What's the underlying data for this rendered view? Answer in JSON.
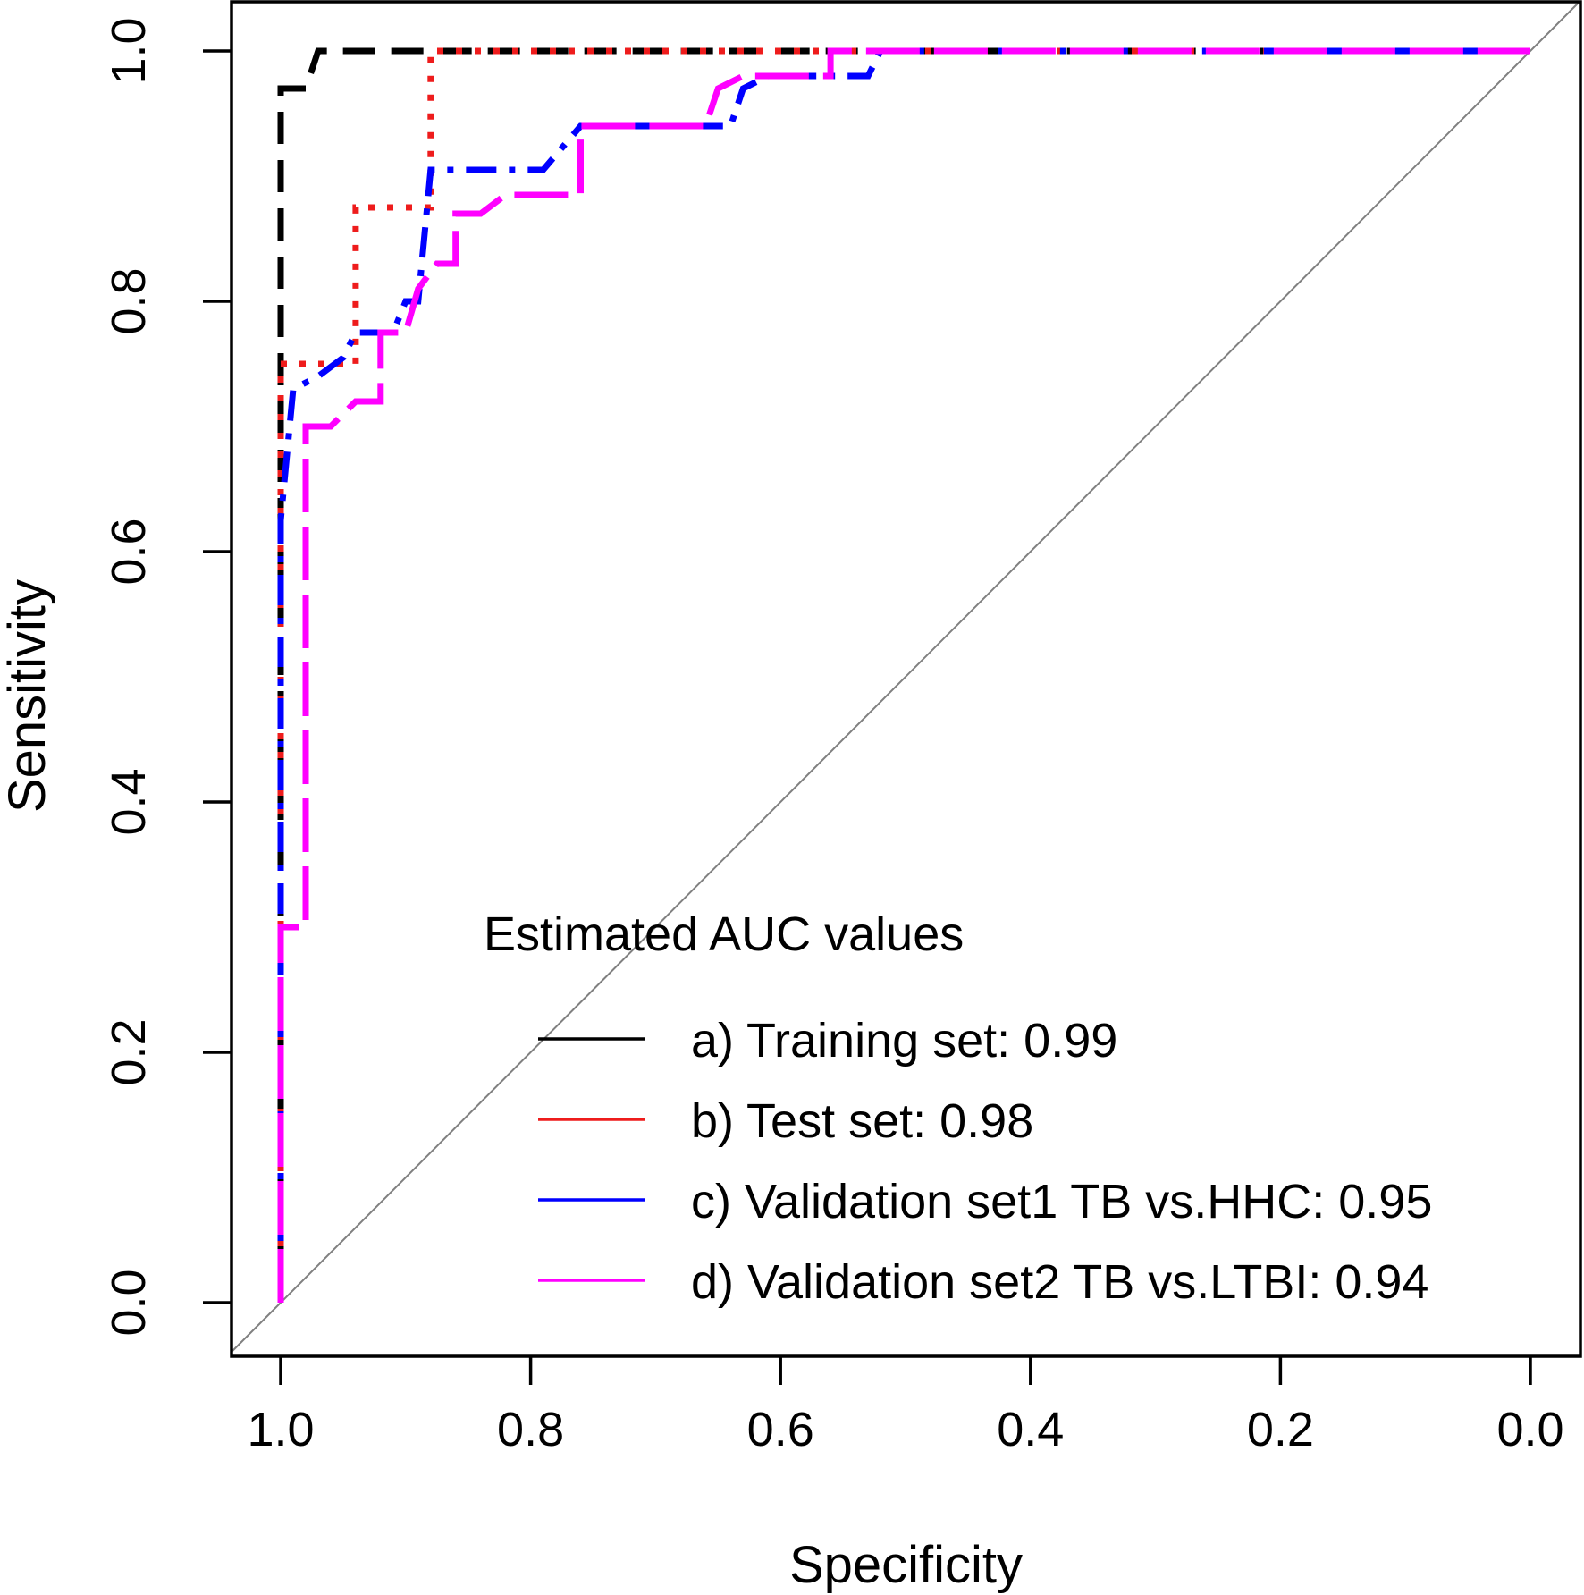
{
  "chart_data": {
    "type": "line",
    "title": "",
    "xlabel": "Specificity",
    "ylabel": "Sensitivity",
    "xlim": [
      1.0,
      0.0
    ],
    "ylim": [
      0.0,
      1.0
    ],
    "x_reversed": true,
    "x_ticks": [
      "1.0",
      "0.8",
      "0.6",
      "0.4",
      "0.2",
      "0.0"
    ],
    "y_ticks": [
      "0.0",
      "0.2",
      "0.4",
      "0.6",
      "0.8",
      "1.0"
    ],
    "grid": false,
    "reference_line": {
      "from": [
        1.0,
        0.0
      ],
      "to": [
        0.0,
        1.0
      ],
      "color": "#808080"
    },
    "legend": {
      "title": "Estimated AUC values",
      "position": "bottom-right"
    },
    "series": [
      {
        "name": "a) Training set: 0.99",
        "color": "#000000",
        "dash": "dashed",
        "points": [
          [
            1.0,
            0.0
          ],
          [
            1.0,
            0.97
          ],
          [
            0.98,
            0.97
          ],
          [
            0.97,
            1.0
          ],
          [
            0.0,
            1.0
          ]
        ]
      },
      {
        "name": "b) Test set: 0.98",
        "color": "#ee1c1c",
        "dash": "dotted",
        "points": [
          [
            1.0,
            0.0
          ],
          [
            1.0,
            0.75
          ],
          [
            0.96,
            0.75
          ],
          [
            0.94,
            0.75
          ],
          [
            0.94,
            0.875
          ],
          [
            0.88,
            0.875
          ],
          [
            0.88,
            1.0
          ],
          [
            0.0,
            1.0
          ]
        ]
      },
      {
        "name": "c) Validation set1 TB vs.HHC: 0.95",
        "color": "#0000ff",
        "dash": "dotdash",
        "points": [
          [
            1.0,
            0.0
          ],
          [
            1.0,
            0.625
          ],
          [
            0.99,
            0.73
          ],
          [
            0.97,
            0.74
          ],
          [
            0.95,
            0.755
          ],
          [
            0.94,
            0.775
          ],
          [
            0.91,
            0.775
          ],
          [
            0.9,
            0.8
          ],
          [
            0.89,
            0.8
          ],
          [
            0.88,
            0.905
          ],
          [
            0.79,
            0.905
          ],
          [
            0.76,
            0.94
          ],
          [
            0.66,
            0.94
          ],
          [
            0.64,
            0.94
          ],
          [
            0.63,
            0.97
          ],
          [
            0.61,
            0.98
          ],
          [
            0.53,
            0.98
          ],
          [
            0.52,
            1.0
          ],
          [
            0.0,
            1.0
          ]
        ]
      },
      {
        "name": "d) Validation set2 TB vs.LTBI: 0.94",
        "color": "#ff00ff",
        "dash": "longdash",
        "points": [
          [
            1.0,
            0.0
          ],
          [
            1.0,
            0.3
          ],
          [
            0.98,
            0.3
          ],
          [
            0.98,
            0.7
          ],
          [
            0.96,
            0.7
          ],
          [
            0.94,
            0.72
          ],
          [
            0.92,
            0.72
          ],
          [
            0.92,
            0.775
          ],
          [
            0.9,
            0.775
          ],
          [
            0.89,
            0.81
          ],
          [
            0.875,
            0.83
          ],
          [
            0.86,
            0.83
          ],
          [
            0.86,
            0.87
          ],
          [
            0.84,
            0.87
          ],
          [
            0.82,
            0.885
          ],
          [
            0.76,
            0.885
          ],
          [
            0.76,
            0.94
          ],
          [
            0.66,
            0.94
          ],
          [
            0.65,
            0.97
          ],
          [
            0.63,
            0.98
          ],
          [
            0.56,
            0.98
          ],
          [
            0.56,
            1.0
          ],
          [
            0.0,
            1.0
          ]
        ]
      }
    ]
  }
}
